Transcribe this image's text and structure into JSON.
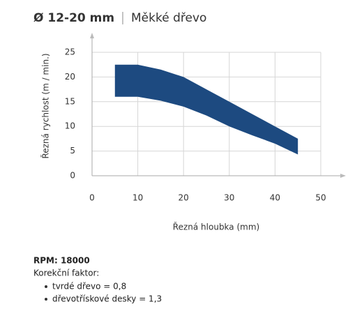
{
  "chart_data": {
    "type": "band",
    "title": "Ø 12-20 mm",
    "subtitle": "Měkké dřevo",
    "x_label": "Řezná hloubka (mm)",
    "y_label": "Řezná rychlost (m / min.)",
    "x": [
      5,
      10,
      15,
      20,
      25,
      30,
      35,
      40,
      45
    ],
    "series": [
      {
        "color": "#1d4a80",
        "values": [
          22.5,
          22.5,
          21.5,
          20,
          17.5,
          15,
          12.5,
          10,
          7.5
        ]
      },
      {
        "color": "#1d4a80",
        "values": [
          16,
          16,
          15.2,
          14,
          12.2,
          10,
          8.2,
          6.5,
          4.3
        ]
      }
    ],
    "xlim": [
      0,
      50
    ],
    "xticks": [
      0,
      10,
      20,
      30,
      40,
      50
    ],
    "ylim": [
      0,
      25
    ],
    "yticks": [
      0,
      5,
      10,
      15,
      20,
      25
    ],
    "grid": true
  },
  "notes": {
    "rpm": "RPM: 18000",
    "label": "Korekční faktor:",
    "items": [
      "tvrdé dřevo = 0,8",
      "dřevotřískové desky = 1,3"
    ]
  }
}
